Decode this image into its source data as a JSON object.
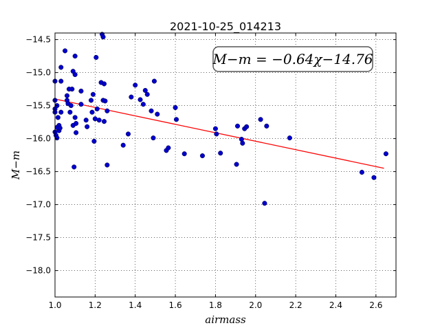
{
  "chart_data": {
    "type": "scatter",
    "title": "2021-10-25_014213",
    "xlabel": "airmass",
    "ylabel": "M−m",
    "xlim": [
      1.0,
      2.7
    ],
    "ylim": [
      -18.4,
      -14.4
    ],
    "y_inverted": true,
    "x_ticks": [
      "1.0",
      "1.2",
      "1.4",
      "1.6",
      "1.8",
      "2.0",
      "2.2",
      "2.4",
      "2.6"
    ],
    "y_ticks": [
      "−14.5",
      "−15.0",
      "−15.5",
      "−16.0",
      "−16.5",
      "−17.0",
      "−17.5",
      "−18.0"
    ],
    "grid": true,
    "annotation": "M−m = −0.64χ−14.76",
    "marker_color": "#0000cc",
    "fit_color": "#ff0000",
    "fit": {
      "slope": -0.64,
      "intercept": -14.76,
      "x_range": [
        1.0,
        2.64
      ]
    },
    "points": [
      [
        1.0,
        -15.13
      ],
      [
        1.0,
        -15.42
      ],
      [
        1.0,
        -15.55
      ],
      [
        1.0,
        -15.6
      ],
      [
        1.0,
        -15.9
      ],
      [
        1.005,
        -15.95
      ],
      [
        1.01,
        -15.99
      ],
      [
        1.01,
        -15.83
      ],
      [
        1.01,
        -15.5
      ],
      [
        1.015,
        -15.68
      ],
      [
        1.02,
        -15.8
      ],
      [
        1.02,
        -15.88
      ],
      [
        1.025,
        -15.84
      ],
      [
        1.03,
        -14.92
      ],
      [
        1.03,
        -15.13
      ],
      [
        1.03,
        -15.6
      ],
      [
        1.05,
        -14.67
      ],
      [
        1.06,
        -15.42
      ],
      [
        1.06,
        -15.35
      ],
      [
        1.065,
        -15.47
      ],
      [
        1.07,
        -15.25
      ],
      [
        1.075,
        -15.6
      ],
      [
        1.08,
        -15.5
      ],
      [
        1.085,
        -15.25
      ],
      [
        1.09,
        -14.98
      ],
      [
        1.09,
        -15.8
      ],
      [
        1.095,
        -16.43
      ],
      [
        1.1,
        -15.68
      ],
      [
        1.1,
        -15.03
      ],
      [
        1.1,
        -14.75
      ],
      [
        1.105,
        -15.77
      ],
      [
        1.105,
        -15.91
      ],
      [
        1.13,
        -15.28
      ],
      [
        1.13,
        -15.48
      ],
      [
        1.155,
        -15.72
      ],
      [
        1.16,
        -15.82
      ],
      [
        1.18,
        -15.42
      ],
      [
        1.185,
        -15.6
      ],
      [
        1.19,
        -15.33
      ],
      [
        1.195,
        -16.04
      ],
      [
        1.2,
        -15.7
      ],
      [
        1.205,
        -14.77
      ],
      [
        1.21,
        -15.55
      ],
      [
        1.22,
        -15.72
      ],
      [
        1.23,
        -15.15
      ],
      [
        1.235,
        -14.42
      ],
      [
        1.24,
        -14.46
      ],
      [
        1.24,
        -15.42
      ],
      [
        1.245,
        -15.17
      ],
      [
        1.245,
        -15.74
      ],
      [
        1.25,
        -15.43
      ],
      [
        1.26,
        -16.4
      ],
      [
        1.26,
        -15.58
      ],
      [
        1.34,
        -16.1
      ],
      [
        1.365,
        -15.93
      ],
      [
        1.38,
        -15.37
      ],
      [
        1.4,
        -15.19
      ],
      [
        1.425,
        -15.41
      ],
      [
        1.44,
        -15.48
      ],
      [
        1.45,
        -15.27
      ],
      [
        1.46,
        -15.33
      ],
      [
        1.48,
        -15.58
      ],
      [
        1.49,
        -15.99
      ],
      [
        1.495,
        -15.13
      ],
      [
        1.51,
        -15.63
      ],
      [
        1.555,
        -16.18
      ],
      [
        1.565,
        -16.14
      ],
      [
        1.6,
        -15.53
      ],
      [
        1.605,
        -15.71
      ],
      [
        1.645,
        -16.23
      ],
      [
        1.735,
        -16.26
      ],
      [
        1.8,
        -15.85
      ],
      [
        1.805,
        -15.93
      ],
      [
        1.825,
        -16.22
      ],
      [
        1.905,
        -16.39
      ],
      [
        1.91,
        -15.81
      ],
      [
        1.93,
        -16.01
      ],
      [
        1.935,
        -16.07
      ],
      [
        1.945,
        -15.85
      ],
      [
        1.955,
        -15.82
      ],
      [
        2.025,
        -15.71
      ],
      [
        2.045,
        -16.98
      ],
      [
        2.055,
        -15.81
      ],
      [
        2.17,
        -15.99
      ],
      [
        2.53,
        -16.51
      ],
      [
        2.59,
        -16.59
      ],
      [
        2.65,
        -16.23
      ]
    ]
  }
}
